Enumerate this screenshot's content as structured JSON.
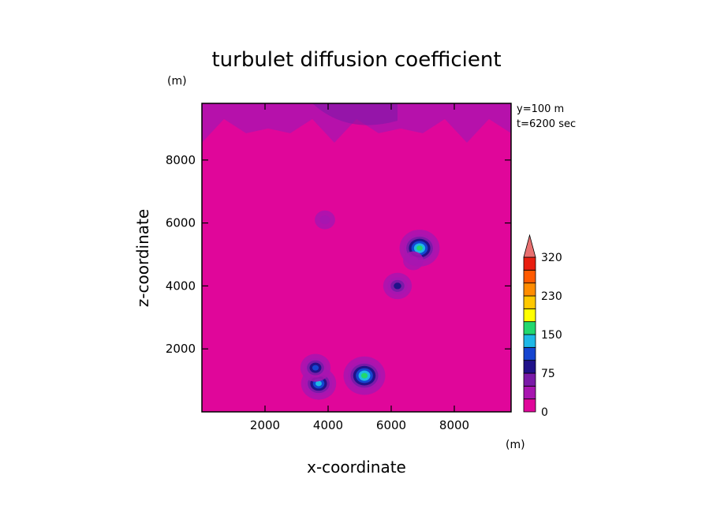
{
  "chart_data": {
    "type": "heatmap",
    "title": "turbulet diffusion coefficient",
    "xlabel": "x-coordinate",
    "ylabel": "z-coordinate",
    "x_unit": "(m)",
    "y_unit": "(m)",
    "annotations": [
      "y=100 m",
      "t=6200 sec"
    ],
    "xlim": [
      0,
      9800
    ],
    "ylim": [
      0,
      9800
    ],
    "xticks": [
      2000,
      4000,
      6000,
      8000
    ],
    "yticks": [
      2000,
      4000,
      6000,
      8000
    ],
    "colorbar": {
      "levels": [
        0,
        25,
        50,
        75,
        100,
        125,
        150,
        175,
        200,
        230,
        260,
        290,
        320
      ],
      "tick_labels": [
        "0",
        "75",
        "150",
        "230",
        "320"
      ],
      "tick_values": [
        0,
        75,
        150,
        230,
        320
      ],
      "extend": "max",
      "colors": [
        "#e0069a",
        "#a815b0",
        "#7a1aa8",
        "#20128a",
        "#1545d0",
        "#1eb8e6",
        "#22d86e",
        "#ffff00",
        "#ffc800",
        "#ff8c00",
        "#ff5a00",
        "#e81e10",
        "#e87070"
      ]
    },
    "features": [
      {
        "name": "top band",
        "kind": "band",
        "z_from": 8800,
        "z_to": 9800,
        "value": 25
      },
      {
        "name": "feature-1",
        "kind": "blob",
        "x": 6900,
        "z": 5200,
        "peak": 160
      },
      {
        "name": "feature-2",
        "kind": "blob",
        "x": 6200,
        "z": 4000,
        "peak": 90
      },
      {
        "name": "feature-3",
        "kind": "blob",
        "x": 5150,
        "z": 1150,
        "peak": 170
      },
      {
        "name": "feature-4",
        "kind": "blob",
        "x": 3700,
        "z": 900,
        "peak": 130
      },
      {
        "name": "feature-5",
        "kind": "blob",
        "x": 3600,
        "z": 1400,
        "peak": 100
      },
      {
        "name": "feature-6",
        "kind": "blob",
        "x": 3900,
        "z": 6100,
        "peak": 40
      },
      {
        "name": "feature-7",
        "kind": "blob",
        "x": 6700,
        "z": 4800,
        "peak": 40
      }
    ]
  }
}
